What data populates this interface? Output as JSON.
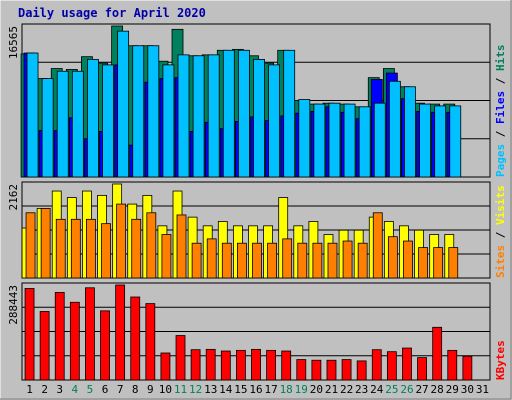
{
  "chart_data": [
    {
      "type": "bar",
      "title": "Daily usage for April 2020",
      "categories": [
        "1",
        "2",
        "3",
        "4",
        "5",
        "6",
        "7",
        "8",
        "9",
        "10",
        "11",
        "12",
        "13",
        "14",
        "15",
        "16",
        "17",
        "18",
        "19",
        "20",
        "21",
        "22",
        "23",
        "24",
        "25",
        "26",
        "27",
        "28",
        "29",
        "30",
        "31"
      ],
      "weekend_days": [
        "4",
        "5",
        "11",
        "12",
        "18",
        "19",
        "25",
        "26"
      ],
      "ymax_label": "16565",
      "ylim": [
        0,
        16565
      ],
      "legend": [
        {
          "label": "Hits",
          "color": "#00805c"
        },
        {
          "label": "Files",
          "color": "#0000ff"
        },
        {
          "label": "Pages",
          "color": "#00c0ff"
        }
      ],
      "series": [
        {
          "name": "Hits",
          "color": "#00805c",
          "values": [
            13500,
            10800,
            11900,
            11800,
            13200,
            12500,
            16565,
            14400,
            14400,
            12700,
            16200,
            13300,
            13400,
            13900,
            14000,
            13300,
            12500,
            13900,
            8400,
            8000,
            8100,
            8000,
            7700,
            10900,
            11900,
            9900,
            8100,
            8000,
            8000,
            null,
            null
          ]
        },
        {
          "name": "Files",
          "color": "#0000ff",
          "values": [
            13600,
            5100,
            5100,
            6500,
            4200,
            5000,
            12300,
            3500,
            10400,
            10800,
            10900,
            5000,
            6000,
            5300,
            6100,
            6600,
            6200,
            6700,
            7000,
            7200,
            7700,
            7100,
            6400,
            10700,
            11400,
            8600,
            7200,
            7100,
            7100,
            null,
            null
          ]
        },
        {
          "name": "Pages",
          "color": "#00c0ff",
          "values": [
            13600,
            10800,
            11600,
            11600,
            12900,
            12300,
            16000,
            14400,
            14400,
            12300,
            13400,
            13300,
            13400,
            13900,
            13900,
            12900,
            12300,
            13900,
            8500,
            8000,
            8100,
            8000,
            7700,
            8100,
            10500,
            9900,
            8000,
            7800,
            7800,
            null,
            null
          ]
        }
      ]
    },
    {
      "type": "bar",
      "ymax_label": "2162",
      "ylim": [
        0,
        2162
      ],
      "legend": [
        {
          "label": "Visits",
          "color": "#ffff00"
        },
        {
          "label": "Sites",
          "color": "#ff8000"
        }
      ],
      "series": [
        {
          "name": "Visits",
          "color": "#ffff00",
          "values": [
            1150,
            1600,
            2000,
            1850,
            2000,
            1900,
            2162,
            1700,
            1900,
            1200,
            2000,
            1400,
            1200,
            1300,
            1200,
            1200,
            1200,
            1850,
            1200,
            1300,
            1000,
            1100,
            1100,
            1400,
            1300,
            1200,
            1100,
            1000,
            1000,
            null,
            null
          ]
        },
        {
          "name": "Sites",
          "color": "#ff8000",
          "values": [
            1500,
            1600,
            1350,
            1350,
            1350,
            1250,
            1700,
            1350,
            1500,
            1000,
            1450,
            800,
            900,
            800,
            800,
            800,
            800,
            900,
            800,
            800,
            800,
            850,
            800,
            1500,
            950,
            850,
            700,
            700,
            700,
            null,
            null
          ]
        }
      ]
    },
    {
      "type": "bar",
      "ymax_label": "288443",
      "ylim": [
        0,
        288443
      ],
      "legend": [
        {
          "label": "KBytes",
          "color": "#ff0000"
        }
      ],
      "series": [
        {
          "name": "KBytes",
          "color": "#ff0000",
          "values": [
            278000,
            208000,
            266000,
            236000,
            280000,
            210000,
            288443,
            252000,
            232000,
            82000,
            135000,
            92000,
            93000,
            88000,
            90000,
            93000,
            90000,
            88000,
            62000,
            60000,
            60000,
            62000,
            58000,
            92000,
            86000,
            97000,
            68000,
            160000,
            90000,
            72000,
            null
          ]
        }
      ]
    }
  ]
}
